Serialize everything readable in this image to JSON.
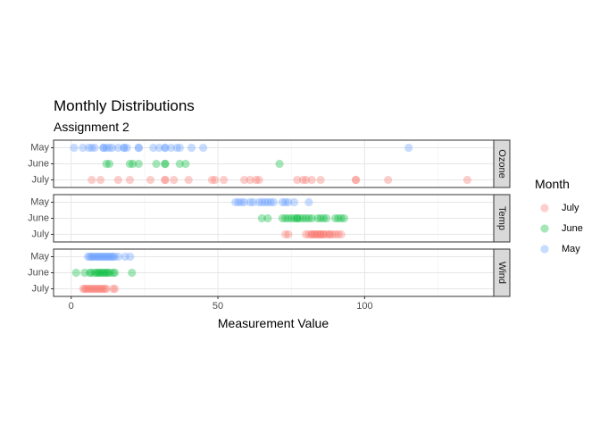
{
  "chart_data": {
    "type": "scatter",
    "title": "Monthly Distributions",
    "subtitle": "Assignment 2",
    "xlabel": "Measurement Value",
    "ylabel": "",
    "xlim": [
      -6,
      144
    ],
    "x_ticks": [
      0,
      50,
      100
    ],
    "grid": true,
    "legend_title": "Month",
    "legend_position": "right",
    "categories": [
      "May",
      "June",
      "July"
    ],
    "colors": {
      "July": "#F8766D",
      "June": "#00BA38",
      "May": "#619CFF"
    },
    "facets": [
      {
        "name": "Ozone",
        "series": [
          {
            "name": "May",
            "values": [
              1,
              4,
              6,
              7,
              8,
              11,
              11,
              12,
              13,
              14,
              16,
              18,
              18,
              19,
              23,
              23,
              28,
              30,
              32,
              32,
              34,
              36,
              37,
              41,
              45,
              115
            ]
          },
          {
            "name": "June",
            "values": [
              12,
              13,
              20,
              21,
              23,
              29,
              32,
              32,
              37,
              39,
              71
            ]
          },
          {
            "name": "July",
            "values": [
              7,
              10,
              16,
              20,
              27,
              32,
              32,
              35,
              40,
              48,
              49,
              52,
              59,
              61,
              63,
              64,
              77,
              79,
              80,
              82,
              85,
              97,
              97,
              108,
              135
            ]
          }
        ]
      },
      {
        "name": "Temp",
        "series": [
          {
            "name": "May",
            "values": [
              56,
              57,
              58,
              59,
              61,
              62,
              64,
              65,
              66,
              67,
              68,
              69,
              72,
              73,
              74,
              76,
              81
            ]
          },
          {
            "name": "June",
            "values": [
              65,
              67,
              72,
              73,
              74,
              75,
              76,
              77,
              77,
              78,
              79,
              80,
              81,
              82,
              84,
              85,
              86,
              87,
              90,
              91,
              92,
              93
            ]
          },
          {
            "name": "July",
            "values": [
              73,
              74,
              80,
              81,
              82,
              82,
              83,
              83,
              84,
              84,
              85,
              85,
              86,
              86,
              87,
              88,
              88,
              89,
              90,
              91,
              92
            ]
          }
        ]
      },
      {
        "name": "Wind",
        "series": [
          {
            "name": "May",
            "values": [
              5.7,
              6.3,
              6.9,
              7.4,
              8.0,
              8.6,
              9.2,
              9.7,
              10.3,
              10.9,
              11.5,
              12.0,
              12.6,
              13.2,
              13.8,
              14.3,
              14.9,
              16.1,
              18.4,
              20.1
            ]
          },
          {
            "name": "June",
            "values": [
              1.7,
              4.6,
              6.3,
              6.9,
              8.0,
              8.6,
              9.2,
              9.7,
              10.3,
              10.9,
              11.5,
              12.0,
              12.6,
              13.2,
              14.3,
              14.9,
              20.7
            ]
          },
          {
            "name": "July",
            "values": [
              4.1,
              4.6,
              5.1,
              5.7,
              6.3,
              6.9,
              7.4,
              8.0,
              8.6,
              9.2,
              9.7,
              10.3,
              10.9,
              11.5,
              12.0,
              14.3,
              14.9
            ]
          }
        ]
      }
    ]
  }
}
